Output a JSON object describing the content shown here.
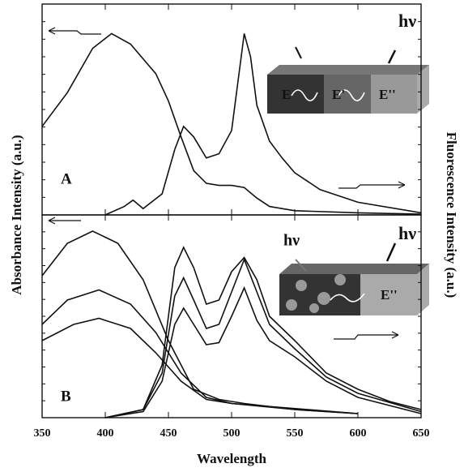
{
  "chart_data": [
    {
      "type": "line",
      "label": "A",
      "ylabel": "Absorbance Intensity (a.u.)",
      "y2label": "Fluorescence Intensity (a.u.)",
      "xlim": [
        350,
        650
      ],
      "ylim": [
        0,
        1
      ],
      "series": [
        {
          "color": "#111111",
          "x": [
            350,
            370,
            390,
            405,
            420,
            430,
            440,
            450,
            460,
            470,
            480,
            490,
            500,
            510,
            520,
            530,
            550,
            600,
            650
          ],
          "values": [
            0.42,
            0.58,
            0.79,
            0.86,
            0.81,
            0.74,
            0.67,
            0.54,
            0.37,
            0.21,
            0.15,
            0.14,
            0.14,
            0.13,
            0.08,
            0.04,
            0.02,
            0.01,
            0.004
          ]
        },
        {
          "color": "#111111",
          "x": [
            400,
            415,
            422,
            430,
            445,
            455,
            462,
            470,
            480,
            490,
            500,
            505,
            510,
            515,
            520,
            530,
            540,
            550,
            570,
            600,
            650
          ],
          "values": [
            0,
            0.04,
            0.07,
            0.03,
            0.1,
            0.31,
            0.42,
            0.37,
            0.27,
            0.29,
            0.4,
            0.63,
            0.86,
            0.75,
            0.52,
            0.35,
            0.27,
            0.2,
            0.12,
            0.06,
            0.01
          ]
        }
      ],
      "annotations": [
        "hν",
        "E",
        "E'",
        "E''"
      ]
    },
    {
      "type": "line",
      "label": "B",
      "xlabel": "Wavelength",
      "xlim": [
        350,
        650
      ],
      "xticks": [
        350,
        400,
        450,
        500,
        550,
        600,
        650
      ],
      "ylim": [
        0,
        1
      ],
      "series": [
        {
          "color": "#111111",
          "x": [
            350,
            370,
            390,
            410,
            430,
            450,
            470,
            490,
            510,
            550,
            600
          ],
          "values": [
            0.7,
            0.86,
            0.92,
            0.86,
            0.68,
            0.38,
            0.14,
            0.09,
            0.07,
            0.04,
            0.02
          ]
        },
        {
          "color": "#111111",
          "x": [
            350,
            370,
            395,
            420,
            440,
            460,
            480,
            500,
            550,
            600
          ],
          "values": [
            0.46,
            0.58,
            0.63,
            0.56,
            0.42,
            0.22,
            0.1,
            0.07,
            0.04,
            0.02
          ]
        },
        {
          "color": "#111111",
          "x": [
            350,
            375,
            395,
            420,
            440,
            460,
            480,
            500,
            600
          ],
          "values": [
            0.38,
            0.46,
            0.49,
            0.44,
            0.32,
            0.18,
            0.09,
            0.07,
            0.02
          ]
        },
        {
          "color": "#111111",
          "x": [
            400,
            430,
            445,
            455,
            462,
            470,
            480,
            490,
            500,
            510,
            520,
            530,
            550,
            575,
            600,
            625,
            650
          ],
          "values": [
            0,
            0.04,
            0.26,
            0.74,
            0.84,
            0.74,
            0.56,
            0.58,
            0.72,
            0.79,
            0.68,
            0.5,
            0.38,
            0.22,
            0.14,
            0.08,
            0.04
          ]
        },
        {
          "color": "#111111",
          "x": [
            400,
            430,
            445,
            455,
            462,
            470,
            480,
            490,
            500,
            510,
            520,
            530,
            550,
            575,
            600,
            650
          ],
          "values": [
            0,
            0.04,
            0.22,
            0.6,
            0.69,
            0.58,
            0.44,
            0.46,
            0.62,
            0.78,
            0.62,
            0.46,
            0.34,
            0.2,
            0.12,
            0.03
          ]
        },
        {
          "color": "#111111",
          "x": [
            400,
            430,
            445,
            455,
            462,
            470,
            480,
            490,
            500,
            510,
            520,
            530,
            550,
            575,
            600,
            650
          ],
          "values": [
            0,
            0.03,
            0.18,
            0.46,
            0.54,
            0.46,
            0.36,
            0.37,
            0.5,
            0.64,
            0.48,
            0.38,
            0.3,
            0.18,
            0.1,
            0.02
          ]
        }
      ],
      "annotations": [
        "hν",
        "hν",
        "E''"
      ]
    }
  ]
}
